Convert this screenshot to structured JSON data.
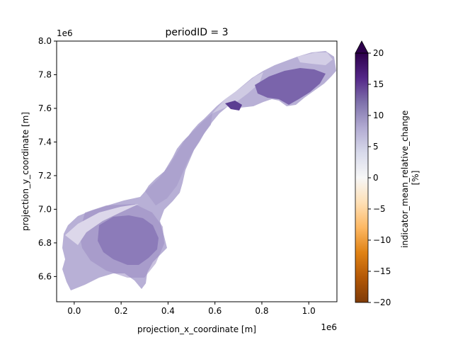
{
  "chart_data": {
    "type": "heatmap",
    "title": "periodID = 3",
    "xlabel": "projection_x_coordinate [m]",
    "ylabel": "projection_y_coordinate [m]",
    "x_offset_label": "1e6",
    "y_offset_label": "1e6",
    "xlim": [
      -0.075,
      1.12
    ],
    "ylim": [
      6.45,
      8.0
    ],
    "xticks": [
      0.0,
      0.2,
      0.4,
      0.6,
      0.8,
      1.0
    ],
    "xtick_labels": [
      "0.0",
      "0.2",
      "0.4",
      "0.6",
      "0.8",
      "1.0"
    ],
    "yticks": [
      6.6,
      6.8,
      7.0,
      7.2,
      7.4,
      7.6,
      7.8,
      8.0
    ],
    "ytick_labels": [
      "6.6",
      "6.8",
      "7.0",
      "7.2",
      "7.4",
      "7.6",
      "7.8",
      "8.0"
    ],
    "colorbar": {
      "label": "indicator_mean_relative_change\n[%]",
      "range": [
        -20,
        20
      ],
      "extend": "max",
      "ticks": [
        -20,
        -15,
        -10,
        -5,
        0,
        5,
        10,
        15,
        20
      ],
      "tick_labels": [
        "−20",
        "−15",
        "−10",
        "−5",
        "0",
        "5",
        "10",
        "15",
        "20"
      ],
      "colormap": "PuOr",
      "colors": [
        "#7f3b08",
        "#b35806",
        "#e08214",
        "#fdb863",
        "#fee0b6",
        "#f7f7f7",
        "#d8daeb",
        "#b2abd2",
        "#8073ac",
        "#542788",
        "#2d004b"
      ]
    },
    "regions": [
      {
        "x": 0.17,
        "y": 6.82,
        "value": 17
      },
      {
        "x": 0.25,
        "y": 6.75,
        "value": 16
      },
      {
        "x": 0.3,
        "y": 6.9,
        "value": 14
      },
      {
        "x": 0.05,
        "y": 6.75,
        "value": 10
      },
      {
        "x": 0.0,
        "y": 6.55,
        "value": 9
      },
      {
        "x": 0.1,
        "y": 6.98,
        "value": 6
      },
      {
        "x": 0.2,
        "y": 7.15,
        "value": 11
      },
      {
        "x": 0.35,
        "y": 7.35,
        "value": 8
      },
      {
        "x": 0.5,
        "y": 7.55,
        "value": 6
      },
      {
        "x": 0.7,
        "y": 7.62,
        "value": 16
      },
      {
        "x": 0.85,
        "y": 7.72,
        "value": 15
      },
      {
        "x": 1.0,
        "y": 7.82,
        "value": 10
      }
    ]
  }
}
